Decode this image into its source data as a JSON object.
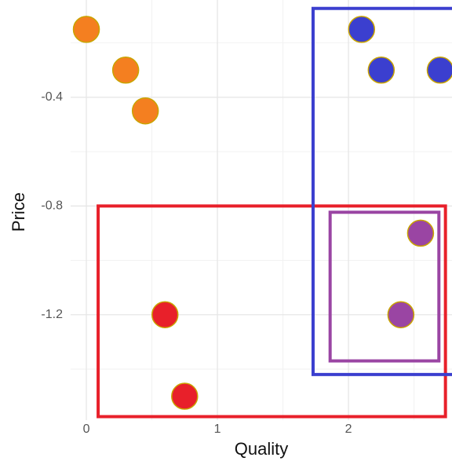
{
  "chart_data": {
    "type": "scatter",
    "x_label": "Quality",
    "y_label": "Price",
    "xlim": [
      -0.12,
      2.79
    ],
    "ylim": [
      -1.588,
      -0.042
    ],
    "xticks": [
      0,
      1,
      2
    ],
    "yticks": [
      -0.4,
      -0.8,
      -1.2
    ],
    "minor_xticks": [
      0.5,
      1.5,
      2.5
    ],
    "minor_yticks": [
      -0.2,
      -0.6,
      -1.0,
      -1.4
    ],
    "grid": true,
    "series": [
      {
        "color": "#f47f20",
        "x": [
          0,
          0.3,
          0.45
        ],
        "values": [
          -0.15,
          -0.3,
          -0.45
        ]
      },
      {
        "color": "#3b3fcf",
        "x": [
          2.1,
          2.25,
          2.7
        ],
        "values": [
          -0.15,
          -0.3,
          -0.3
        ]
      },
      {
        "color": "#9a45a3",
        "x": [
          2.55,
          2.4
        ],
        "values": [
          -0.9,
          -1.2
        ]
      },
      {
        "color": "#e8202a",
        "x": [
          0.6,
          0.75
        ],
        "values": [
          -1.2,
          -1.5
        ]
      }
    ],
    "rects": [
      {
        "color": "#e8202a",
        "x0": 0.09,
        "x1": 2.74,
        "y0": -1.575,
        "y1": -0.8
      },
      {
        "color": "#3b3fcf",
        "x0": 1.73,
        "x1": 2.85,
        "y0": -1.42,
        "y1": -0.073
      },
      {
        "color": "#9a45a3",
        "x0": 1.86,
        "x1": 2.69,
        "y0": -1.37,
        "y1": -0.823
      }
    ]
  }
}
